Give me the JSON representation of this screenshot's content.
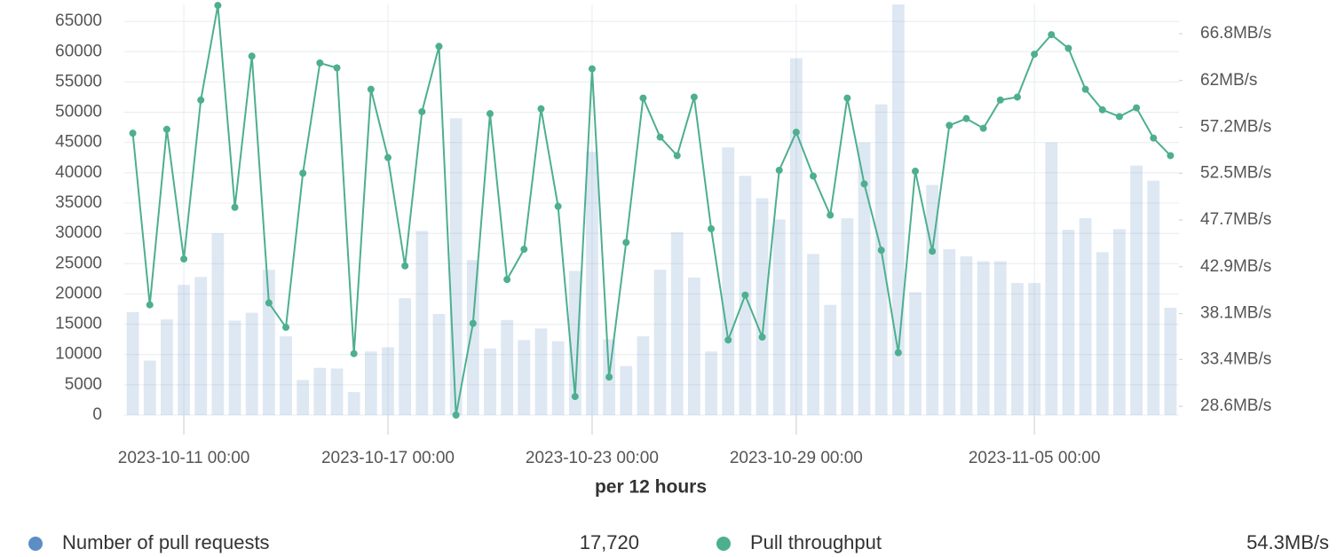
{
  "chart_data": {
    "type": "bar_line",
    "x_label": "per 12 hours",
    "x": [
      "2023-10-09 12:00",
      "2023-10-10 00:00",
      "2023-10-10 12:00",
      "2023-10-11 00:00",
      "2023-10-11 12:00",
      "2023-10-12 00:00",
      "2023-10-12 12:00",
      "2023-10-13 00:00",
      "2023-10-13 12:00",
      "2023-10-14 00:00",
      "2023-10-14 12:00",
      "2023-10-15 00:00",
      "2023-10-15 12:00",
      "2023-10-16 00:00",
      "2023-10-16 12:00",
      "2023-10-17 00:00",
      "2023-10-17 12:00",
      "2023-10-18 00:00",
      "2023-10-18 12:00",
      "2023-10-19 00:00",
      "2023-10-19 12:00",
      "2023-10-20 00:00",
      "2023-10-20 12:00",
      "2023-10-21 00:00",
      "2023-10-21 12:00",
      "2023-10-22 00:00",
      "2023-10-22 12:00",
      "2023-10-23 00:00",
      "2023-10-23 12:00",
      "2023-10-24 00:00",
      "2023-10-24 12:00",
      "2023-10-25 00:00",
      "2023-10-25 12:00",
      "2023-10-26 00:00",
      "2023-10-26 12:00",
      "2023-10-27 00:00",
      "2023-10-27 12:00",
      "2023-10-28 00:00",
      "2023-10-28 12:00",
      "2023-10-29 00:00",
      "2023-10-29 12:00",
      "2023-10-30 00:00",
      "2023-10-30 12:00",
      "2023-10-31 00:00",
      "2023-10-31 12:00",
      "2023-11-01 00:00",
      "2023-11-01 12:00",
      "2023-11-02 00:00",
      "2023-11-02 12:00",
      "2023-11-03 00:00",
      "2023-11-03 12:00",
      "2023-11-04 00:00",
      "2023-11-04 12:00",
      "2023-11-05 00:00",
      "2023-11-05 12:00",
      "2023-11-06 00:00",
      "2023-11-06 12:00",
      "2023-11-07 00:00",
      "2023-11-07 12:00",
      "2023-11-08 00:00",
      "2023-11-08 12:00",
      "2023-11-09 00:00"
    ],
    "xlim": [
      "2023-10-09 06:00",
      "2023-11-09 06:00"
    ],
    "xticks": [
      "2023-10-11 00:00",
      "2023-10-17 00:00",
      "2023-10-23 00:00",
      "2023-10-29 00:00",
      "2023-11-05 00:00"
    ],
    "ylim": [
      0,
      67800
    ],
    "yticks": [
      0,
      5000,
      10000,
      15000,
      20000,
      25000,
      30000,
      35000,
      40000,
      45000,
      50000,
      55000,
      60000,
      65000
    ],
    "y2lim": [
      27.7,
      69.8
    ],
    "y2ticks": [
      {
        "value": 28.6,
        "label": "28.6MB/s"
      },
      {
        "value": 33.4,
        "label": "33.4MB/s"
      },
      {
        "value": 38.1,
        "label": "38.1MB/s"
      },
      {
        "value": 42.9,
        "label": "42.9MB/s"
      },
      {
        "value": 47.7,
        "label": "47.7MB/s"
      },
      {
        "value": 52.5,
        "label": "52.5MB/s"
      },
      {
        "value": 57.2,
        "label": "57.2MB/s"
      },
      {
        "value": 62,
        "label": "62MB/s"
      },
      {
        "value": 66.8,
        "label": "66.8MB/s"
      }
    ],
    "grid": true,
    "series": [
      {
        "name": "Number of pull requests",
        "kind": "bar",
        "color": "#5b8ec4",
        "legend_value": "17,720",
        "values": [
          17000,
          9000,
          15800,
          21500,
          22800,
          30000,
          15600,
          16900,
          24000,
          13000,
          5800,
          7800,
          7700,
          3800,
          10500,
          11200,
          19300,
          30400,
          16700,
          49000,
          25600,
          11000,
          15700,
          12400,
          14300,
          12200,
          23800,
          43500,
          12500,
          8100,
          13000,
          24000,
          30200,
          22700,
          10500,
          44200,
          39500,
          35800,
          32300,
          58900,
          26600,
          18200,
          32500,
          45000,
          51300,
          67800,
          20300,
          38000,
          27400,
          26200,
          25400,
          25400,
          21800,
          21800,
          45000,
          30600,
          32500,
          26900,
          30700,
          41200,
          38700,
          17720
        ]
      },
      {
        "name": "Pull throughput",
        "kind": "line",
        "axis": "y2",
        "color": "#4daf8f",
        "legend_value": "54.3MB/s",
        "values": [
          56.6,
          39.0,
          57.0,
          43.7,
          60.0,
          69.7,
          49.0,
          64.5,
          39.2,
          36.7,
          52.5,
          63.8,
          63.3,
          34.0,
          61.1,
          54.1,
          43.0,
          58.8,
          65.5,
          27.7,
          37.1,
          58.6,
          41.6,
          44.7,
          59.1,
          49.1,
          29.6,
          63.2,
          31.6,
          45.4,
          60.2,
          56.2,
          54.3,
          60.3,
          46.8,
          35.4,
          40.0,
          35.7,
          52.8,
          56.7,
          52.2,
          48.2,
          60.2,
          51.4,
          44.6,
          34.1,
          52.7,
          44.5,
          57.4,
          58.1,
          57.1,
          60.0,
          60.3,
          64.7,
          66.7,
          65.3,
          61.1,
          59.0,
          58.3,
          59.2,
          56.1,
          54.3
        ]
      }
    ]
  }
}
